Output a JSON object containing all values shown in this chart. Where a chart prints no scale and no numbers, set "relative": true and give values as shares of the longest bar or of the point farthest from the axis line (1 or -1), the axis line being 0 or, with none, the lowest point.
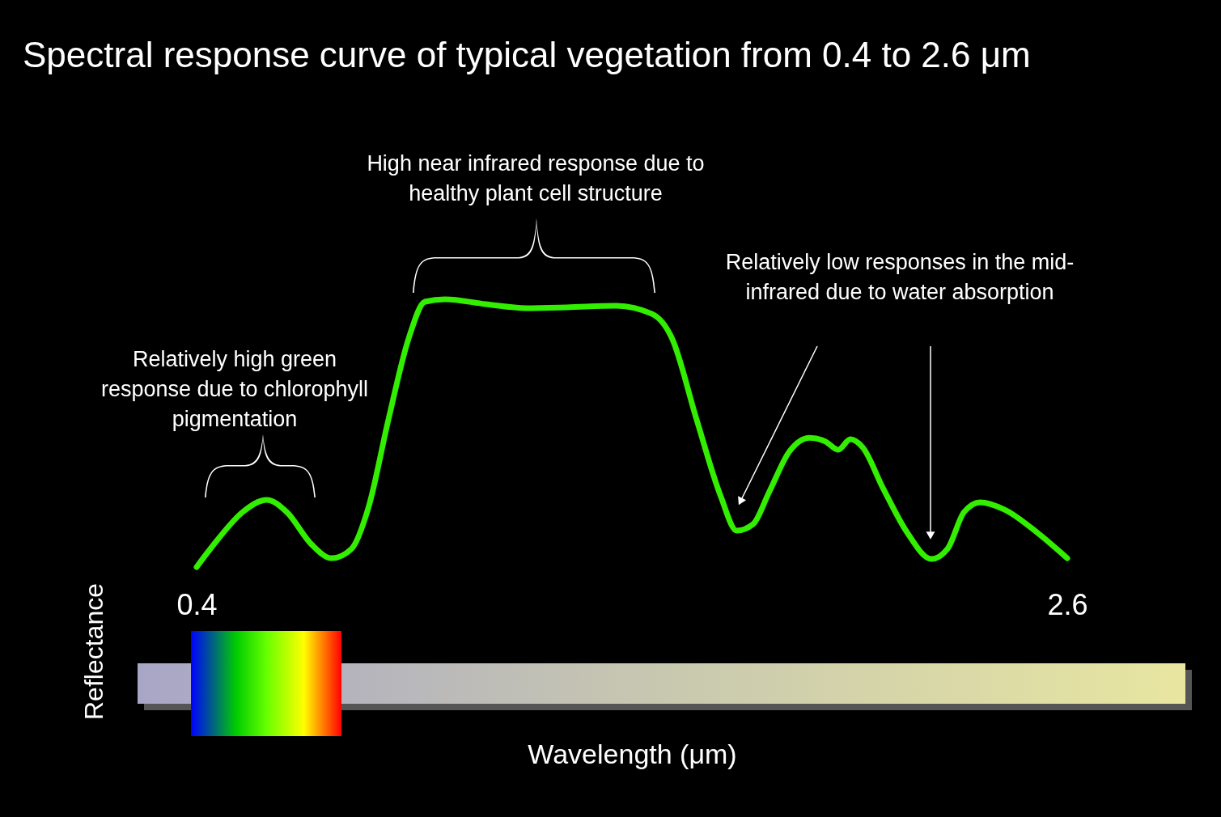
{
  "chart_data": {
    "type": "line",
    "title": "Spectral response curve of typical vegetation from 0.4 to 2.6 μm",
    "xlabel": "Wavelength (μm)",
    "ylabel": "Reflectance",
    "relative": true,
    "xlim": [
      0.4,
      2.6
    ],
    "xticks": [
      0.4,
      2.6
    ],
    "x": [
      0.4,
      0.455,
      0.516,
      0.577,
      0.628,
      0.69,
      0.741,
      0.792,
      0.834,
      0.885,
      0.936,
      0.977,
      1.028,
      1.13,
      1.233,
      1.335,
      1.458,
      1.55,
      1.601,
      1.663,
      1.724,
      1.765,
      1.806,
      1.847,
      1.898,
      1.949,
      1.99,
      2.021,
      2.052,
      2.083,
      2.134,
      2.195,
      2.257,
      2.298,
      2.339,
      2.38,
      2.441,
      2.523,
      2.6
    ],
    "series": [
      {
        "color": "#33ee00",
        "values": [
          0.0,
          0.106,
          0.205,
          0.251,
          0.205,
          0.085,
          0.033,
          0.069,
          0.221,
          0.553,
          0.855,
          0.991,
          1.0,
          0.982,
          0.967,
          0.97,
          0.976,
          0.946,
          0.855,
          0.553,
          0.266,
          0.136,
          0.16,
          0.281,
          0.432,
          0.483,
          0.468,
          0.438,
          0.477,
          0.447,
          0.296,
          0.13,
          0.03,
          0.069,
          0.205,
          0.242,
          0.215,
          0.13,
          0.033
        ]
      }
    ],
    "annotations": [
      "Relatively high green\nresponse due to chlorophyll\npigmentation",
      "High near infrared response due to\nhealthy plant cell structure",
      "Relatively low responses in the mid-\ninfrared due to water absorption"
    ]
  }
}
